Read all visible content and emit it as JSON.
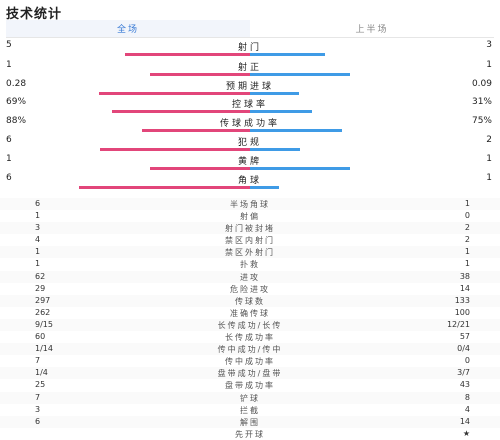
{
  "title": "技术统计",
  "tabs": [
    {
      "label": "全场",
      "active": true
    },
    {
      "label": "上半场",
      "active": false
    }
  ],
  "colors": {
    "home": "#e2467a",
    "away": "#3f9be6",
    "tab_active": "#3a7bd5"
  },
  "bar_stats": [
    {
      "label": "射门",
      "home": "5",
      "away": "3",
      "home_share": 0.625,
      "away_share": 0.375
    },
    {
      "label": "射正",
      "home": "1",
      "away": "1",
      "home_share": 0.5,
      "away_share": 0.5
    },
    {
      "label": "预期进球",
      "home": "0.28",
      "away": "0.09",
      "home_share": 0.757,
      "away_share": 0.243
    },
    {
      "label": "控球率",
      "home": "69%",
      "away": "31%",
      "home_share": 0.69,
      "away_share": 0.31
    },
    {
      "label": "传球成功率",
      "home": "88%",
      "away": "75%",
      "home_share": 0.54,
      "away_share": 0.46
    },
    {
      "label": "犯规",
      "home": "6",
      "away": "2",
      "home_share": 0.75,
      "away_share": 0.25
    },
    {
      "label": "黄牌",
      "home": "1",
      "away": "1",
      "home_share": 0.5,
      "away_share": 0.5
    },
    {
      "label": "角球",
      "home": "6",
      "away": "1",
      "home_share": 0.857,
      "away_share": 0.143
    }
  ],
  "table_stats": [
    {
      "label": "半场角球",
      "home": "6",
      "away": "1"
    },
    {
      "label": "射偏",
      "home": "1",
      "away": "0"
    },
    {
      "label": "射门被封堵",
      "home": "3",
      "away": "2"
    },
    {
      "label": "禁区内射门",
      "home": "4",
      "away": "2"
    },
    {
      "label": "禁区外射门",
      "home": "1",
      "away": "1"
    },
    {
      "label": "扑救",
      "home": "1",
      "away": "1"
    },
    {
      "label": "进攻",
      "home": "62",
      "away": "38"
    },
    {
      "label": "危险进攻",
      "home": "29",
      "away": "14"
    },
    {
      "label": "传球数",
      "home": "297",
      "away": "133"
    },
    {
      "label": "准确传球",
      "home": "262",
      "away": "100"
    },
    {
      "label": "长传成功/长传",
      "home": "9/15",
      "away": "12/21"
    },
    {
      "label": "长传成功率",
      "home": "60",
      "away": "57"
    },
    {
      "label": "传中成功/传中",
      "home": "1/14",
      "away": "0/4"
    },
    {
      "label": "传中成功率",
      "home": "7",
      "away": "0"
    },
    {
      "label": "盘带成功/盘带",
      "home": "1/4",
      "away": "3/7"
    },
    {
      "label": "盘带成功率",
      "home": "25",
      "away": "43"
    },
    {
      "label": "铲球",
      "home": "7",
      "away": "8"
    },
    {
      "label": "拦截",
      "home": "3",
      "away": "4"
    },
    {
      "label": "解围",
      "home": "6",
      "away": "14"
    },
    {
      "label": "先开球",
      "home": "",
      "away": "★"
    }
  ]
}
